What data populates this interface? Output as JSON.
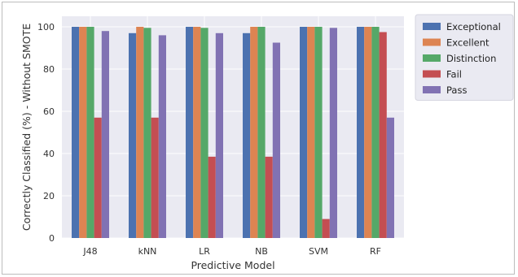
{
  "chart_data": {
    "type": "bar",
    "title": "",
    "xlabel": "Predictive Model",
    "ylabel": "Correctly Classified (%) - Without SMOTE",
    "categories": [
      "J48",
      "kNN",
      "LR",
      "NB",
      "SVM",
      "RF"
    ],
    "ylim": [
      0,
      105
    ],
    "yticks": [
      0,
      20,
      40,
      60,
      80,
      100
    ],
    "grid": true,
    "legend_position": "right",
    "series": [
      {
        "name": "Exceptional",
        "color": "#4c72b0",
        "values": [
          100,
          97,
          100,
          97,
          100,
          100
        ]
      },
      {
        "name": "Excellent",
        "color": "#dd8452",
        "values": [
          100,
          100,
          100,
          100,
          100,
          100
        ]
      },
      {
        "name": "Distinction",
        "color": "#55a868",
        "values": [
          100,
          99.5,
          99.5,
          100,
          100,
          100
        ]
      },
      {
        "name": "Fail",
        "color": "#c44e52",
        "values": [
          57,
          57,
          38.5,
          38.5,
          9,
          97.5
        ]
      },
      {
        "name": "Pass",
        "color": "#8172b3",
        "values": [
          98,
          96,
          97,
          92.5,
          99.5,
          57
        ]
      }
    ],
    "plot_background": "#eaeaf2",
    "grid_color": "#ffffff"
  }
}
